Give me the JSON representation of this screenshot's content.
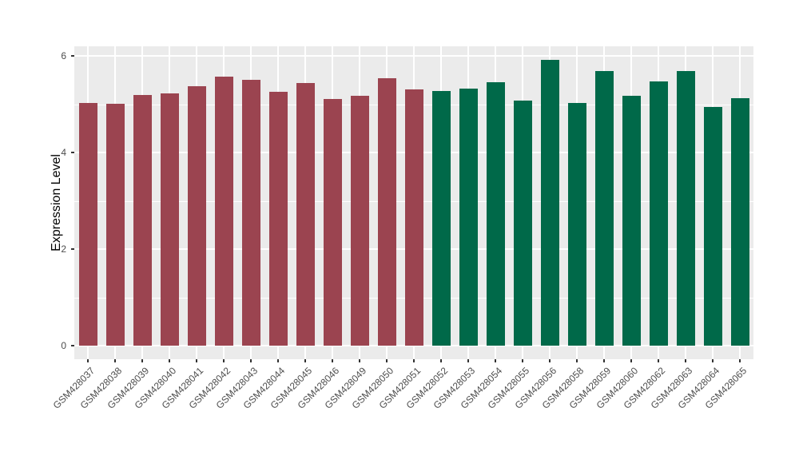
{
  "figure": {
    "background": "#ffffff",
    "panel_background": "#ebebeb",
    "gridline_color": "#ffffff",
    "tick_mark_color": "#333333",
    "axis_text_color": "#4d4d4d",
    "axis_title_color": "#000000"
  },
  "chart_data": {
    "type": "bar",
    "title": "",
    "xlabel": "",
    "ylabel": "Expression Level",
    "ylim": [
      -0.28,
      6.2
    ],
    "yticks": [
      0,
      2,
      4,
      6
    ],
    "yticks_minor": [
      1,
      3,
      5
    ],
    "grid": "on",
    "legend_position": "none",
    "bar_colors": {
      "maroon": "#9b4450",
      "green": "#006949"
    },
    "bars": [
      {
        "label": "GSM428037",
        "value": 5.02,
        "color_key": "maroon"
      },
      {
        "label": "GSM428038",
        "value": 5.01,
        "color_key": "maroon"
      },
      {
        "label": "GSM428039",
        "value": 5.19,
        "color_key": "maroon"
      },
      {
        "label": "GSM428040",
        "value": 5.22,
        "color_key": "maroon"
      },
      {
        "label": "GSM428041",
        "value": 5.37,
        "color_key": "maroon"
      },
      {
        "label": "GSM428042",
        "value": 5.57,
        "color_key": "maroon"
      },
      {
        "label": "GSM428043",
        "value": 5.5,
        "color_key": "maroon"
      },
      {
        "label": "GSM428044",
        "value": 5.25,
        "color_key": "maroon"
      },
      {
        "label": "GSM428045",
        "value": 5.44,
        "color_key": "maroon"
      },
      {
        "label": "GSM428046",
        "value": 5.1,
        "color_key": "maroon"
      },
      {
        "label": "GSM428049",
        "value": 5.17,
        "color_key": "maroon"
      },
      {
        "label": "GSM428050",
        "value": 5.54,
        "color_key": "maroon"
      },
      {
        "label": "GSM428051",
        "value": 5.31,
        "color_key": "maroon"
      },
      {
        "label": "GSM428052",
        "value": 5.28,
        "color_key": "green"
      },
      {
        "label": "GSM428053",
        "value": 5.33,
        "color_key": "green"
      },
      {
        "label": "GSM428054",
        "value": 5.46,
        "color_key": "green"
      },
      {
        "label": "GSM428055",
        "value": 5.07,
        "color_key": "green"
      },
      {
        "label": "GSM428056",
        "value": 5.92,
        "color_key": "green"
      },
      {
        "label": "GSM428058",
        "value": 5.02,
        "color_key": "green"
      },
      {
        "label": "GSM428059",
        "value": 5.68,
        "color_key": "green"
      },
      {
        "label": "GSM428060",
        "value": 5.17,
        "color_key": "green"
      },
      {
        "label": "GSM428062",
        "value": 5.47,
        "color_key": "green"
      },
      {
        "label": "GSM428063",
        "value": 5.68,
        "color_key": "green"
      },
      {
        "label": "GSM428064",
        "value": 4.94,
        "color_key": "green"
      },
      {
        "label": "GSM428065",
        "value": 5.13,
        "color_key": "green"
      }
    ]
  }
}
